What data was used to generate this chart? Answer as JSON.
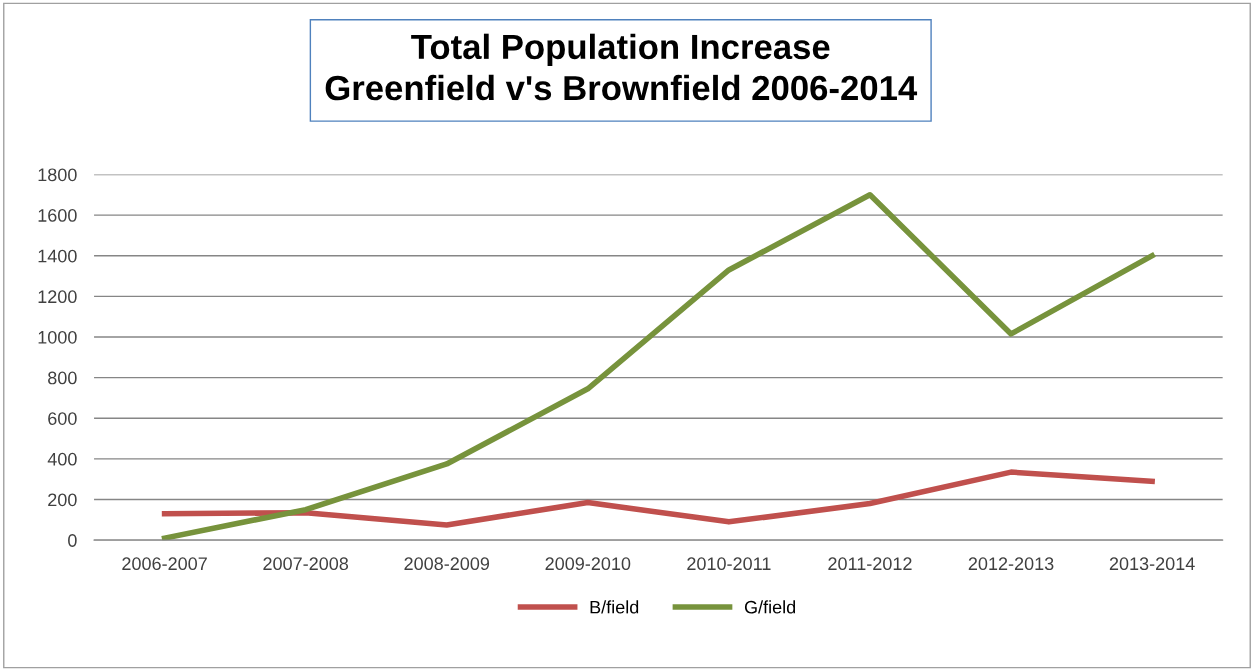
{
  "chart_data": {
    "type": "line",
    "title": "Total Population Increase\nGreenfield v's Brownfield 2006-2014",
    "categories": [
      "2006-2007",
      "2007-2008",
      "2008-2009",
      "2009-2010",
      "2010-2011",
      "2011-2012",
      "2012-2013",
      "2013-2014"
    ],
    "series": [
      {
        "name": "B/field",
        "color": "#c0504d",
        "values": [
          130,
          135,
          75,
          185,
          90,
          180,
          335,
          290
        ]
      },
      {
        "name": "G/field",
        "color": "#77933c",
        "values": [
          10,
          150,
          375,
          745,
          1330,
          1700,
          1015,
          1400
        ]
      }
    ],
    "ylim": [
      0,
      1800
    ],
    "yticks": [
      0,
      200,
      400,
      600,
      800,
      1000,
      1200,
      1400,
      1600,
      1800
    ],
    "grid": "y",
    "legend": "bottom",
    "marker": "none",
    "line_style": "solid"
  }
}
